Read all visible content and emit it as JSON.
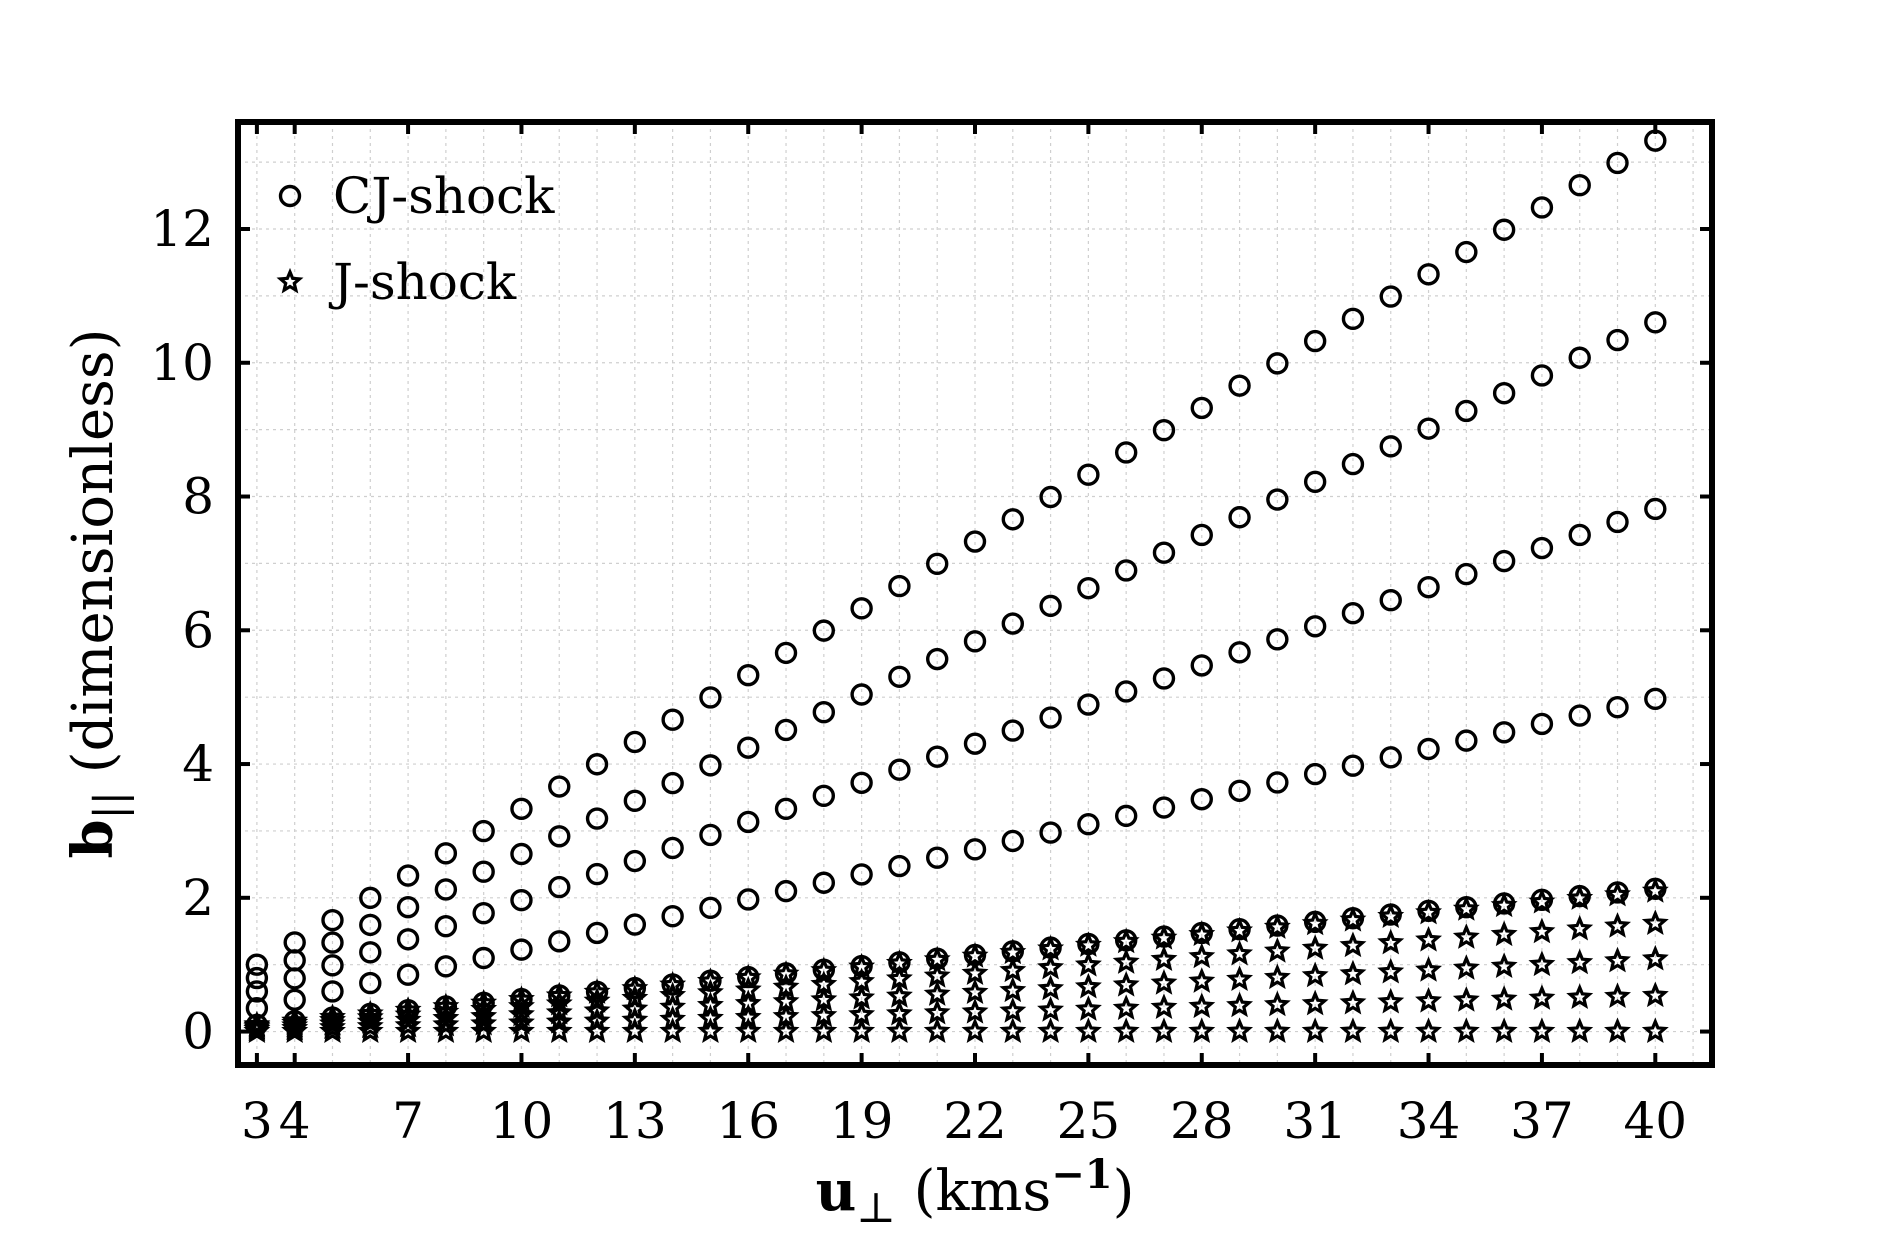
{
  "chart_data": {
    "type": "scatter",
    "title": "",
    "xlabel": {
      "main": "u",
      "sub": "⊥",
      "unit_prefix": "(kms",
      "unit_sup": "−1",
      "unit_suffix": ")"
    },
    "ylabel": {
      "main": "b",
      "sub": "||",
      "rest": "(dimensionless)"
    },
    "xlim": [
      2.5,
      41.5
    ],
    "ylim": [
      -0.5,
      13.6
    ],
    "grid": true,
    "x_ticks": [
      3,
      4,
      7,
      10,
      13,
      16,
      19,
      22,
      25,
      28,
      31,
      34,
      37,
      40
    ],
    "x_tick_labels": [
      "3",
      "4",
      "7",
      "10",
      "13",
      "16",
      "19",
      "22",
      "25",
      "28",
      "31",
      "34",
      "37",
      "40"
    ],
    "y_ticks": [
      0,
      2,
      4,
      6,
      8,
      10,
      12
    ],
    "y_tick_labels": [
      "0",
      "2",
      "4",
      "6",
      "8",
      "10",
      "12"
    ],
    "x": [
      3,
      4,
      5,
      6,
      7,
      8,
      9,
      10,
      11,
      12,
      13,
      14,
      15,
      16,
      17,
      18,
      19,
      20,
      21,
      22,
      23,
      24,
      25,
      26,
      27,
      28,
      29,
      30,
      31,
      32,
      33,
      34,
      35,
      36,
      37,
      38,
      39,
      40
    ],
    "legend": {
      "position": "top-left",
      "entries": [
        "CJ-shock",
        "J-shock"
      ]
    },
    "series": [
      {
        "name": "CJ-shock",
        "marker": "circle",
        "group": "cj",
        "slope": 0.333,
        "y_at_3": 1.0
      },
      {
        "name": "CJ-shock",
        "marker": "circle",
        "group": "cj",
        "slope": 0.265,
        "y_at_3": 0.8
      },
      {
        "name": "CJ-shock",
        "marker": "circle",
        "group": "cj",
        "slope": 0.195,
        "y_at_3": 0.6
      },
      {
        "name": "CJ-shock",
        "marker": "circle",
        "group": "cj",
        "slope": 0.125,
        "y_at_3": 0.35
      },
      {
        "name": "CJ-shock",
        "marker": "circle",
        "group": "cj",
        "slope": 0.055,
        "y_at_3": 0.1
      },
      {
        "name": "J-shock",
        "marker": "star",
        "group": "j",
        "slope": 0.054,
        "y_at_3": 0.1
      },
      {
        "name": "J-shock",
        "marker": "star",
        "group": "j",
        "slope": 0.0415,
        "y_at_3": 0.08
      },
      {
        "name": "J-shock",
        "marker": "star",
        "group": "j",
        "slope": 0.0278,
        "y_at_3": 0.055
      },
      {
        "name": "J-shock",
        "marker": "star",
        "group": "j",
        "slope": 0.0137,
        "y_at_3": 0.03
      },
      {
        "name": "J-shock",
        "marker": "star",
        "group": "j",
        "slope": 0.0,
        "y_at_3": 0.0
      }
    ]
  }
}
